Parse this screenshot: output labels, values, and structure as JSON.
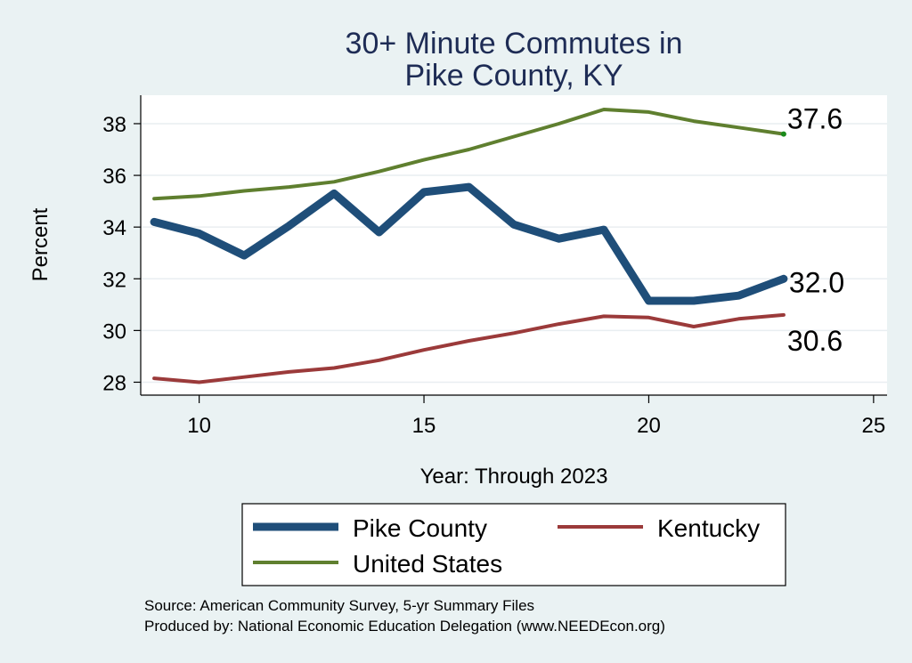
{
  "chart_data": {
    "type": "line",
    "title": [
      "30+ Minute Commutes in",
      "Pike County, KY"
    ],
    "xlabel": "Year: Through 2023",
    "ylabel": "Percent",
    "xlim": [
      8.7,
      25.3
    ],
    "ylim": [
      27.5,
      39.1
    ],
    "xticks": [
      10,
      15,
      20,
      25
    ],
    "yticks": [
      28,
      30,
      32,
      34,
      36,
      38
    ],
    "grid": true,
    "legend_position": "bottom",
    "series": [
      {
        "name": "Pike County",
        "color": "#1f4e79",
        "x": [
          9,
          10,
          11,
          12,
          13,
          14,
          15,
          16,
          17,
          18,
          19,
          20,
          21,
          22,
          23
        ],
        "y": [
          34.2,
          33.75,
          32.9,
          34.05,
          35.3,
          33.8,
          35.35,
          35.55,
          34.1,
          33.55,
          33.9,
          31.15,
          31.15,
          31.35,
          32.0
        ],
        "end_label": "32.0"
      },
      {
        "name": "Kentucky",
        "color": "#9b3a3a",
        "x": [
          9,
          10,
          11,
          12,
          13,
          14,
          15,
          16,
          17,
          18,
          19,
          20,
          21,
          22,
          23
        ],
        "y": [
          28.15,
          28.0,
          28.2,
          28.4,
          28.55,
          28.85,
          29.25,
          29.6,
          29.9,
          30.25,
          30.55,
          30.5,
          30.15,
          30.45,
          30.6
        ],
        "end_label": "30.6"
      },
      {
        "name": "United States",
        "color": "#5f7f2f",
        "x": [
          9,
          10,
          11,
          12,
          13,
          14,
          15,
          16,
          17,
          18,
          19,
          20,
          21,
          22,
          23
        ],
        "y": [
          35.1,
          35.2,
          35.4,
          35.55,
          35.75,
          36.15,
          36.6,
          37.0,
          37.5,
          38.0,
          38.55,
          38.45,
          38.1,
          37.85,
          37.6
        ],
        "end_label": "37.6"
      }
    ],
    "notes": [
      "Source: American Community Survey, 5-yr Summary Files",
      "Produced by: National Economic Education Delegation (www.NEEDEcon.org)"
    ]
  }
}
